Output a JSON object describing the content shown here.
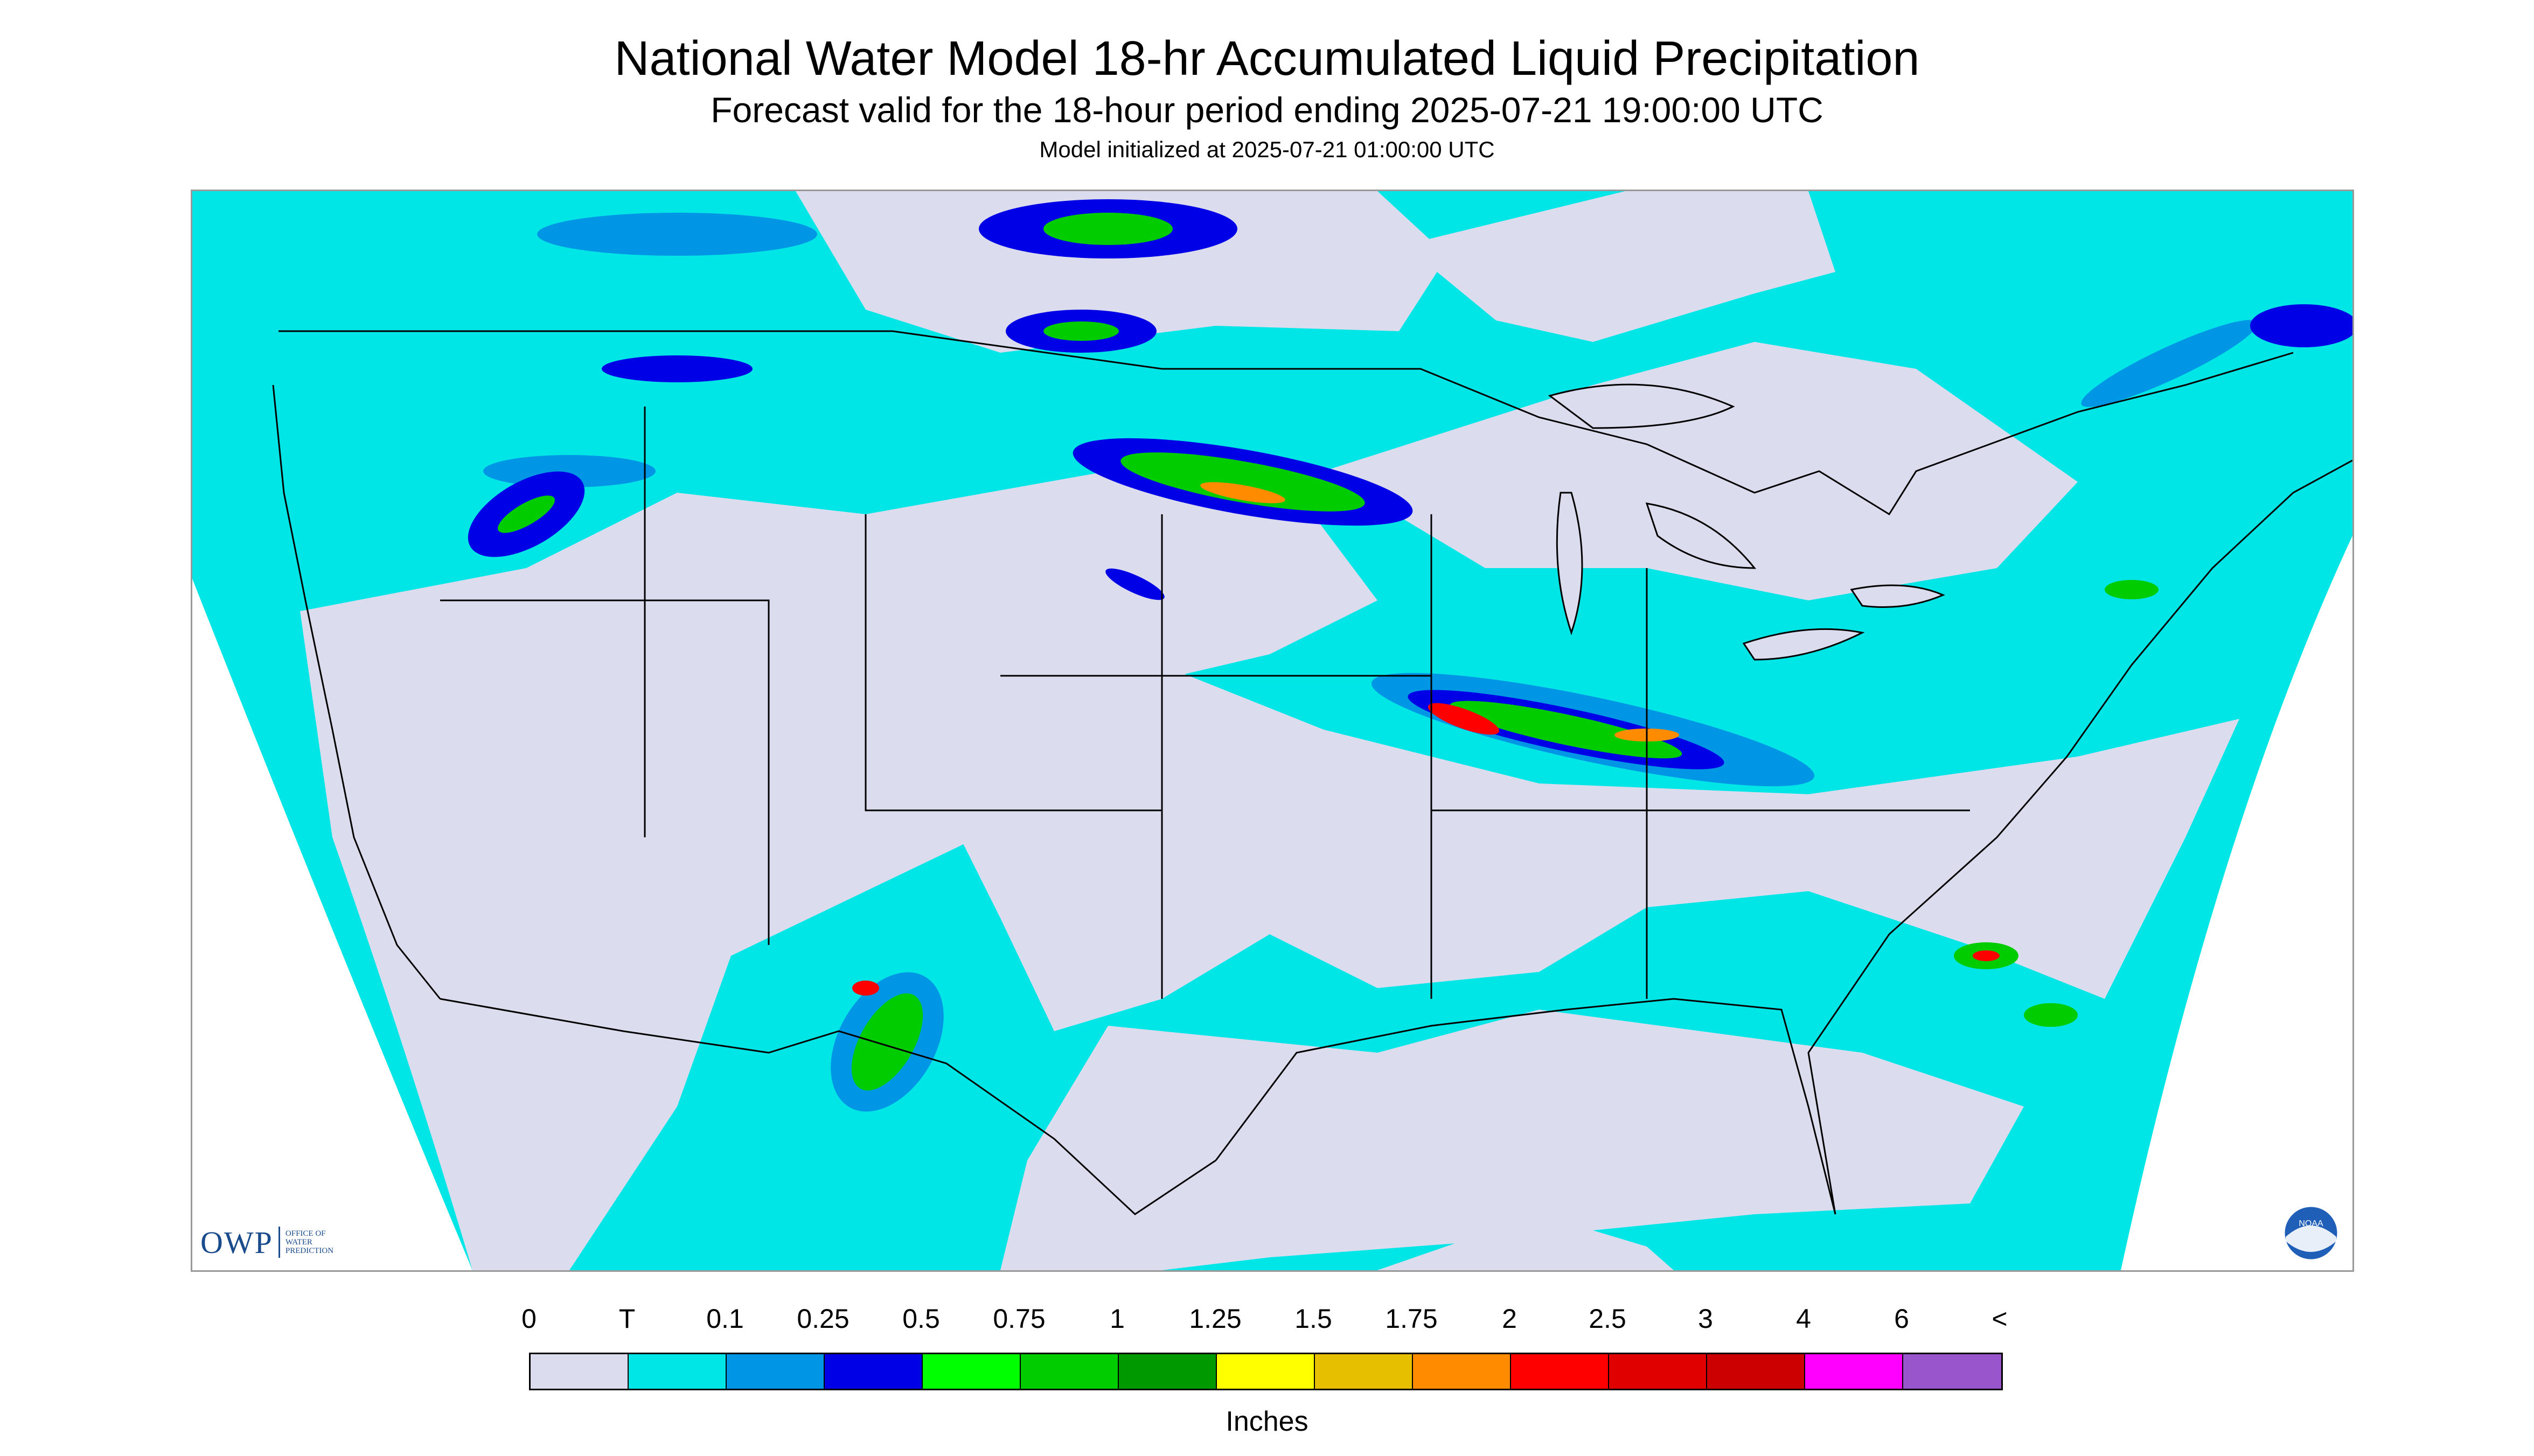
{
  "title": "National Water Model 18-hr Accumulated Liquid Precipitation",
  "subtitle": "Forecast valid for the 18-hour period ending 2025-07-21 19:00:00 UTC",
  "init_line": "Model initialized at 2025-07-21 01:00:00 UTC",
  "logos": {
    "owp_letters": "OWP",
    "owp_text_lines": [
      "OFFICE OF",
      "WATER",
      "PREDICTION"
    ],
    "noaa_text": "NOAA"
  },
  "legend": {
    "units": "Inches",
    "labels": [
      "0",
      "T",
      "0.1",
      "0.25",
      "0.5",
      "0.75",
      "1",
      "1.25",
      "1.5",
      "1.75",
      "2",
      "2.5",
      "3",
      "4",
      "6",
      "<"
    ],
    "colors": [
      "#dcdcef",
      "#00e6e6",
      "#0096e6",
      "#0000e6",
      "#00ff00",
      "#00cc00",
      "#009900",
      "#ffff00",
      "#e6c000",
      "#ff8c00",
      "#ff0000",
      "#e00000",
      "#cc0000",
      "#ff00ff",
      "#9955cc"
    ]
  },
  "map_colors": {
    "outside": "#ffffff",
    "no_precip": "#dcdcef",
    "trace": "#00e6e6",
    "light": "#0096e6",
    "moderate": "#0000e6",
    "heavy": "#00cc00",
    "very_heavy": "#ff0000"
  }
}
